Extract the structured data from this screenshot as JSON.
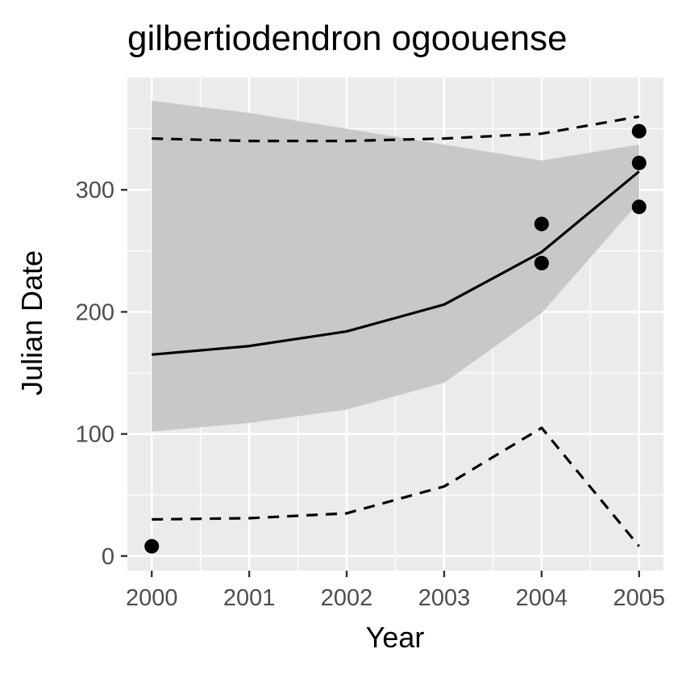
{
  "chart_data": {
    "type": "line",
    "title": "gilbertiodendron ogoouense",
    "xlabel": "Year",
    "ylabel": "Julian Date",
    "x": [
      2000,
      2001,
      2002,
      2003,
      2004,
      2005
    ],
    "xlim": [
      1999.75,
      2005.25
    ],
    "ylim": [
      -12,
      392
    ],
    "xticks": [
      "2000",
      "2001",
      "2002",
      "2003",
      "2004",
      "2005"
    ],
    "yticks": [
      0,
      100,
      200,
      300
    ],
    "grid": true,
    "legend": "none",
    "series": [
      {
        "kind": "ribbon",
        "upper": [
          373,
          363,
          350,
          337,
          324,
          337
        ],
        "lower": [
          102,
          109,
          120,
          142,
          199,
          290
        ],
        "color": "#c8c8c8"
      },
      {
        "kind": "line",
        "values": [
          165,
          172,
          184,
          206,
          249,
          315
        ],
        "color": "#000000",
        "dash": "solid"
      },
      {
        "kind": "line",
        "values": [
          342,
          340,
          340,
          342,
          346,
          360
        ],
        "color": "#000000",
        "dash": "dashed"
      },
      {
        "kind": "line",
        "values": [
          30,
          31,
          35,
          57,
          105,
          8
        ],
        "color": "#000000",
        "dash": "dashed"
      },
      {
        "kind": "points",
        "x": [
          2000,
          2004,
          2004,
          2005,
          2005,
          2005
        ],
        "y": [
          8,
          240,
          272,
          348,
          322,
          286
        ],
        "color": "#000000"
      }
    ]
  },
  "colors": {
    "panel_background": "#ebebeb",
    "grid_major": "#ffffff",
    "ribbon": "#c8c8c8",
    "line": "#000000",
    "tick": "#333333",
    "tick_label": "#4d4d4d"
  }
}
